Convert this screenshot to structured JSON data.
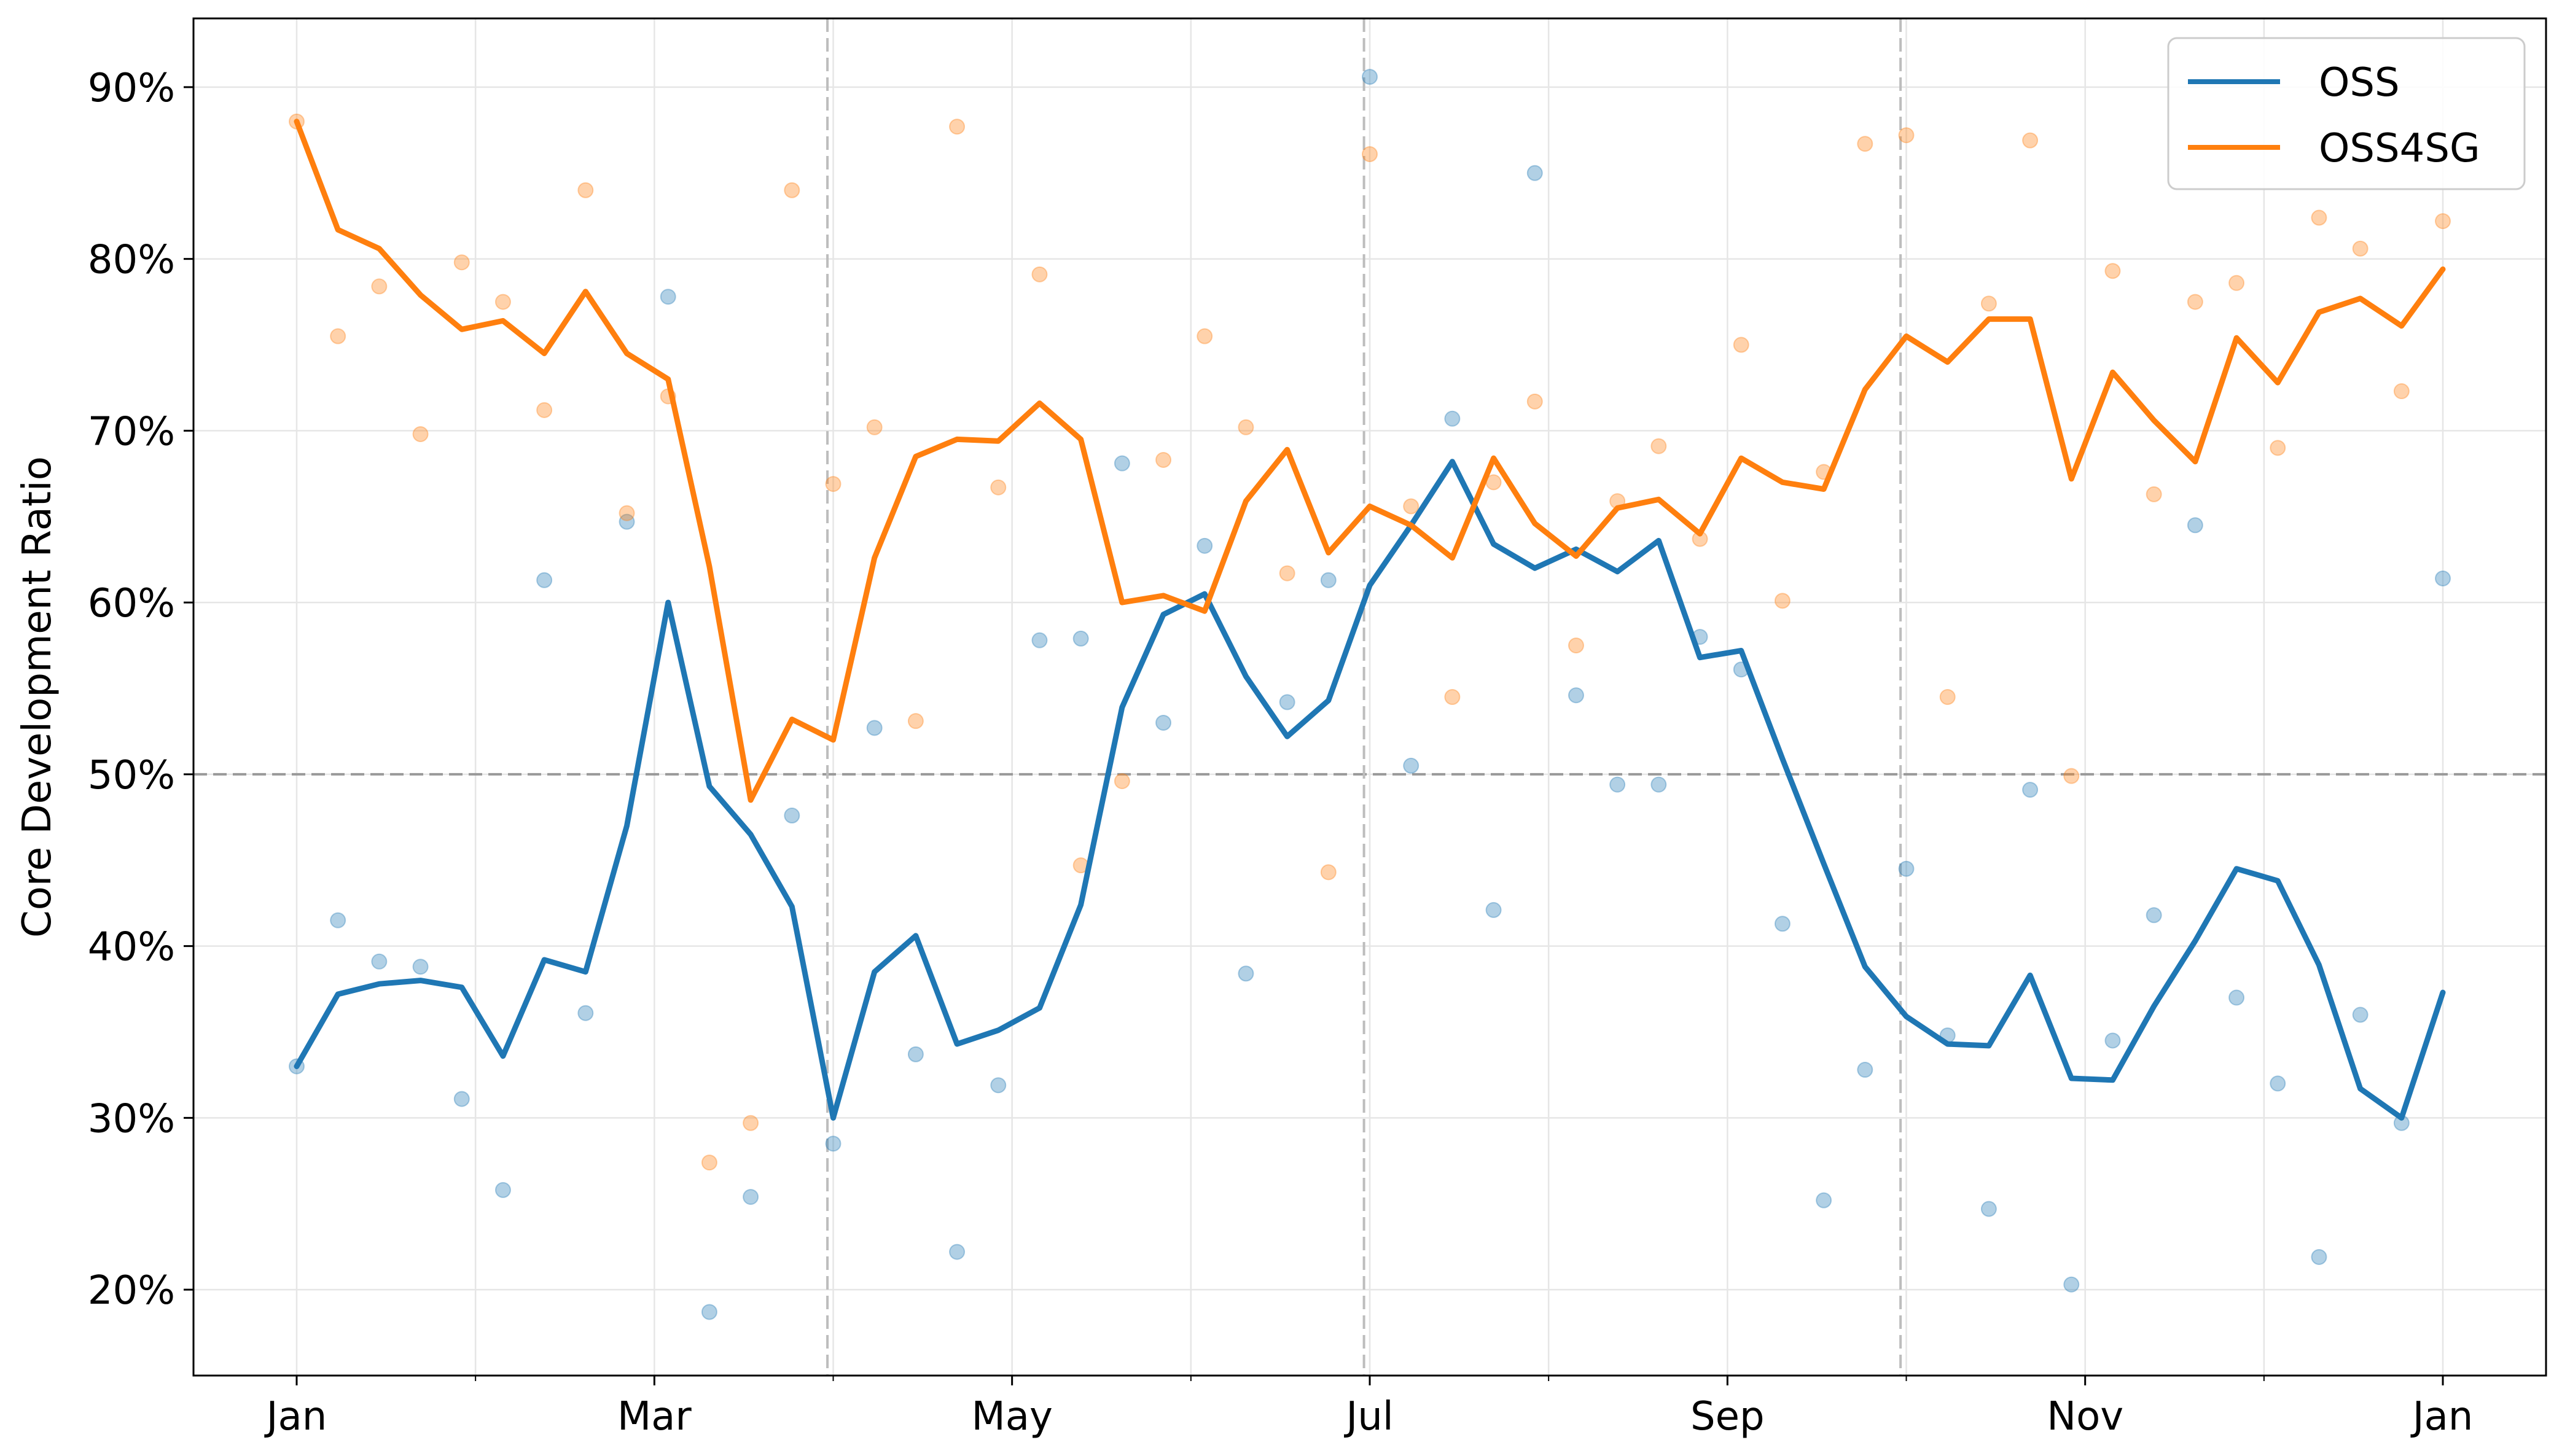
{
  "chart_data": {
    "type": "line",
    "title": "",
    "xlabel": "",
    "ylabel": "Core Development Ratio",
    "x_ticks": [
      "Jan",
      "Mar",
      "May",
      "Jul",
      "Sep",
      "Nov",
      "Jan"
    ],
    "y_ticks": [
      "20%",
      "30%",
      "40%",
      "50%",
      "60%",
      "70%",
      "80%",
      "90%"
    ],
    "ylim": [
      0.15,
      0.94
    ],
    "xlim": [
      -2.5,
      54.5
    ],
    "grid": true,
    "reference_line": 0.5,
    "quarter_markers": [
      12.86,
      25.86,
      38.86
    ],
    "legend": {
      "position": "top-right",
      "entries": [
        "OSS",
        "OSS4SG"
      ]
    },
    "series": [
      {
        "name": "OSS",
        "color": "#1f77b4",
        "smoothed": [
          0.33,
          0.372,
          0.378,
          0.38,
          0.376,
          0.336,
          0.392,
          0.385,
          0.47,
          0.6,
          0.493,
          0.465,
          0.423,
          0.3,
          0.385,
          0.406,
          0.343,
          0.351,
          0.364,
          0.424,
          0.539,
          0.593,
          0.605,
          0.557,
          0.522,
          0.543,
          0.61,
          0.645,
          0.682,
          0.634,
          0.62,
          0.631,
          0.618,
          0.636,
          0.568,
          0.572,
          0.509,
          0.448,
          0.388,
          0.359,
          0.343,
          0.342,
          0.383,
          0.323,
          0.322,
          0.365,
          0.403,
          0.445,
          0.438,
          0.389,
          0.317,
          0.3,
          0.373
        ],
        "raw": [
          0.33,
          0.415,
          0.391,
          0.388,
          0.311,
          0.258,
          0.613,
          0.361,
          0.647,
          0.778,
          0.187,
          0.254,
          0.476,
          0.285,
          0.527,
          0.337,
          0.222,
          0.319,
          0.578,
          0.579,
          0.681,
          0.53,
          0.633,
          0.384,
          0.542,
          0.613,
          0.906,
          0.505,
          0.707,
          0.421,
          0.85,
          0.546,
          0.494,
          0.494,
          0.58,
          0.561,
          0.413,
          0.252,
          0.328,
          0.445,
          0.348,
          0.247,
          0.491,
          0.203,
          0.345,
          0.418,
          0.645,
          0.37,
          0.32,
          0.219,
          0.36,
          0.297,
          0.614
        ]
      },
      {
        "name": "OSS4SG",
        "color": "#ff7f0e",
        "smoothed": [
          0.88,
          0.817,
          0.806,
          0.779,
          0.759,
          0.764,
          0.745,
          0.781,
          0.745,
          0.73,
          0.621,
          0.485,
          0.532,
          0.52,
          0.626,
          0.685,
          0.695,
          0.694,
          0.716,
          0.695,
          0.6,
          0.604,
          0.595,
          0.659,
          0.689,
          0.629,
          0.656,
          0.645,
          0.626,
          0.684,
          0.646,
          0.627,
          0.655,
          0.66,
          0.64,
          0.684,
          0.67,
          0.666,
          0.724,
          0.755,
          0.74,
          0.765,
          0.765,
          0.672,
          0.734,
          0.706,
          0.682,
          0.754,
          0.728,
          0.769,
          0.777,
          0.761,
          0.794
        ],
        "raw": [
          0.88,
          0.755,
          0.784,
          0.698,
          0.798,
          0.775,
          0.712,
          0.84,
          0.652,
          0.72,
          0.274,
          0.297,
          0.84,
          0.669,
          0.702,
          0.531,
          0.877,
          0.667,
          0.791,
          0.447,
          0.496,
          0.683,
          0.755,
          0.702,
          0.617,
          0.443,
          0.861,
          0.656,
          0.545,
          0.67,
          0.717,
          0.575,
          0.659,
          0.691,
          0.637,
          0.75,
          0.601,
          0.676,
          0.867,
          0.872,
          0.545,
          0.774,
          0.869,
          0.499,
          0.793,
          0.663,
          0.775,
          0.786,
          0.69,
          0.824,
          0.806,
          0.723,
          0.822
        ]
      }
    ]
  }
}
